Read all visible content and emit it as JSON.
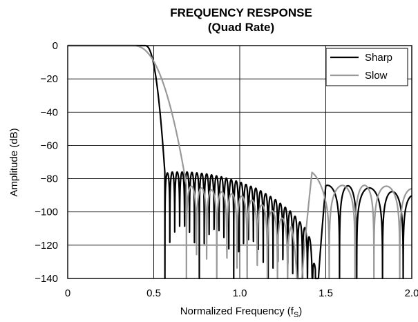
{
  "chart_data": {
    "type": "line",
    "title": "FREQUENCY RESPONSE",
    "subtitle": "(Quad Rate)",
    "xlabel": "Normalized Frequency (f",
    "xlabel_sub": "S",
    "xlabel_end": ")",
    "ylabel": "Amplitude (dB)",
    "xlim": [
      0,
      2.0
    ],
    "ylim": [
      -140,
      0
    ],
    "xticks": [
      0,
      0.5,
      1.0,
      1.5,
      2.0
    ],
    "xtick_labels": [
      "0",
      "0.5",
      "1.0",
      "1.5",
      "2.0"
    ],
    "yticks": [
      0,
      -20,
      -40,
      -60,
      -80,
      -100,
      -120,
      -140
    ],
    "ytick_labels": [
      "0",
      "−20",
      "−40",
      "−60",
      "−80",
      "−100",
      "−120",
      "−140"
    ],
    "grid": true,
    "legend_position": "top-right",
    "series": [
      {
        "name": "Sharp",
        "color": "#000000",
        "transition": {
          "pass_edge": 0.45,
          "stop_edge": 0.565
        },
        "x": [
          0.565,
          0.6,
          0.7,
          0.8,
          0.9,
          1.0,
          1.1,
          1.2,
          1.3,
          1.4,
          1.45,
          1.5,
          1.6,
          1.7,
          1.8,
          1.9,
          2.0
        ],
        "peak_db": [
          -77,
          -76,
          -76,
          -77,
          -79,
          -82,
          -86,
          -92,
          -100,
          -112,
          -140,
          -84,
          -84,
          -85,
          -86,
          -88,
          -90
        ],
        "nulls_per_unit": 35,
        "arch_nulls": [
          1.44,
          1.58,
          1.68,
          1.83,
          1.95
        ]
      },
      {
        "name": "Slow",
        "color": "#999999",
        "transition": {
          "pass_edge": 0.38,
          "stop_edge": 0.69
        },
        "x": [
          0.69,
          0.8,
          0.9,
          1.0,
          1.1,
          1.2,
          1.3,
          1.35,
          1.42,
          1.5,
          1.6,
          1.7,
          1.8,
          1.9,
          2.0
        ],
        "peak_db": [
          -84,
          -86,
          -88,
          -90,
          -94,
          -100,
          -108,
          -140,
          -76,
          -85,
          -84,
          -84,
          -84,
          -85,
          -86
        ],
        "nulls_per_unit": 17,
        "arch_nulls": [
          1.345,
          1.52,
          1.67,
          1.78,
          1.93
        ]
      }
    ]
  }
}
